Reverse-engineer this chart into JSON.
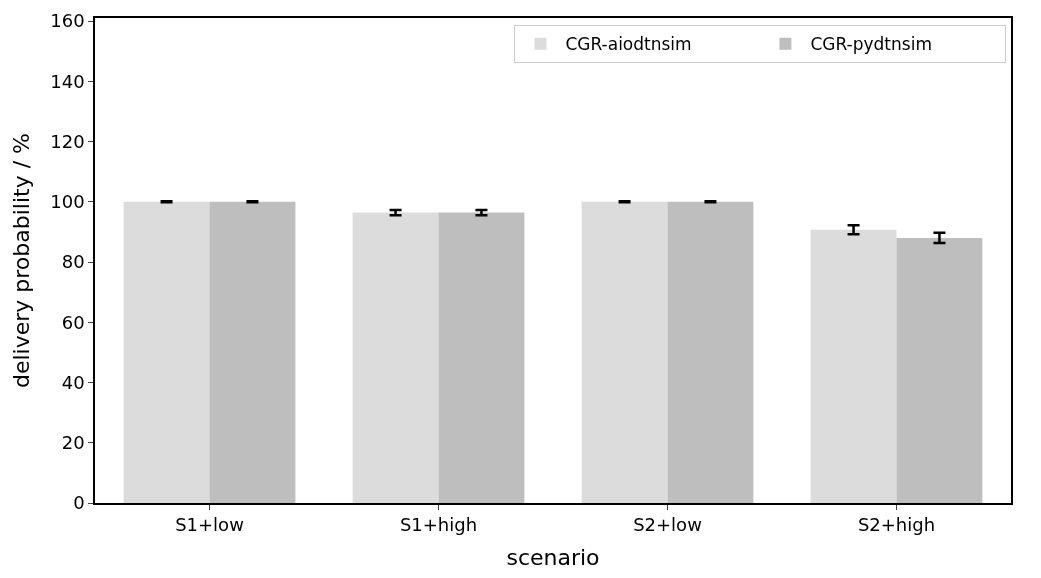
{
  "chart_data": {
    "type": "bar",
    "xlabel": "scenario",
    "ylabel": "delivery probability / %",
    "categories": [
      "S1+low",
      "S1+high",
      "S2+low",
      "S2+high"
    ],
    "series": [
      {
        "name": "CGR-aiodtnsim",
        "color": "#dcdcdc",
        "values": [
          100,
          96.4,
          100,
          90.7
        ],
        "errors": [
          0.2,
          0.9,
          0.2,
          1.5
        ]
      },
      {
        "name": "CGR-pydtnsim",
        "color": "#bebebe",
        "values": [
          100,
          96.4,
          100,
          88.0
        ],
        "errors": [
          0.2,
          0.9,
          0.2,
          1.7
        ]
      }
    ],
    "ylim": [
      0,
      161
    ],
    "yticks": [
      0,
      20,
      40,
      60,
      80,
      100,
      120,
      140,
      160
    ],
    "legend": "top right"
  }
}
